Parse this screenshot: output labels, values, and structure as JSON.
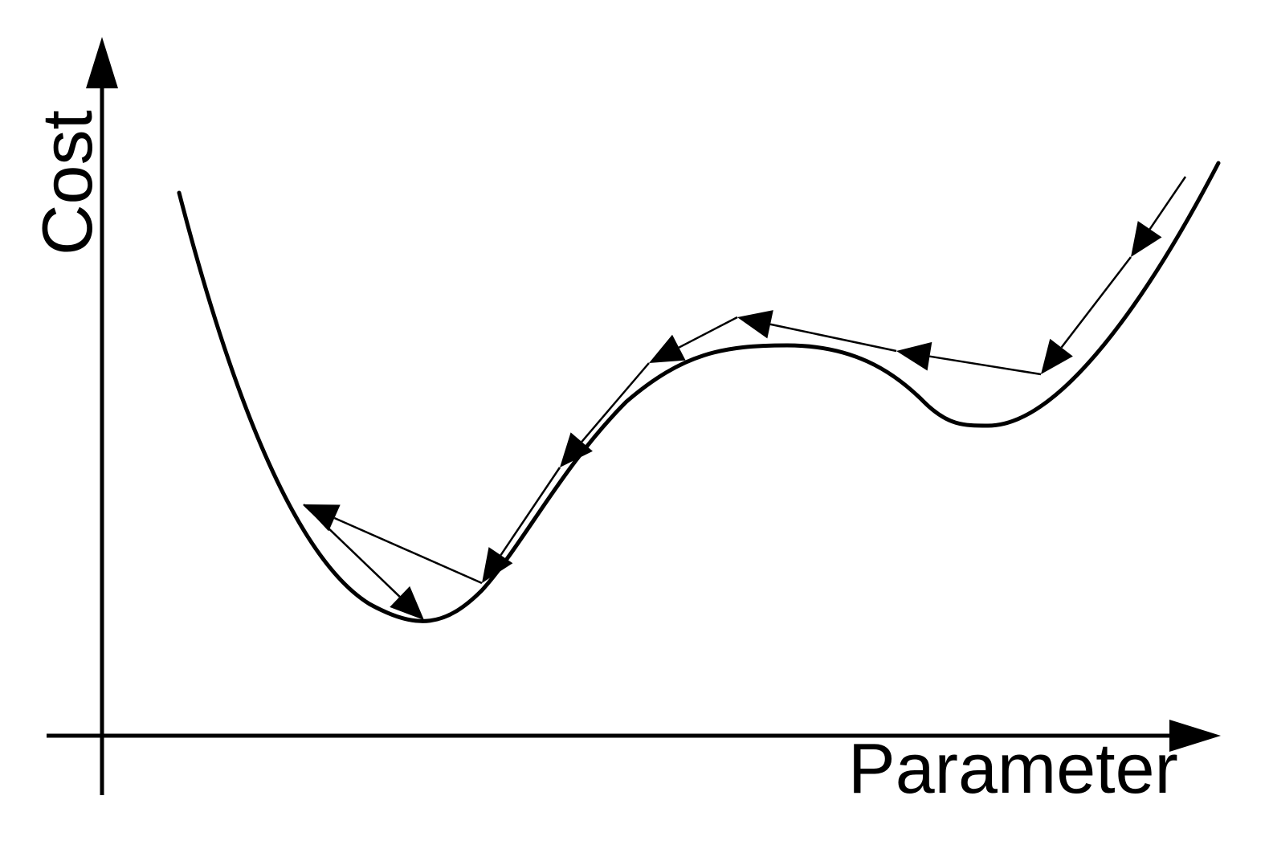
{
  "diagram": {
    "x_axis_label": "Parameter",
    "y_axis_label": "Cost",
    "colors": {
      "background": "#ffffff",
      "ink": "#000000"
    }
  }
}
